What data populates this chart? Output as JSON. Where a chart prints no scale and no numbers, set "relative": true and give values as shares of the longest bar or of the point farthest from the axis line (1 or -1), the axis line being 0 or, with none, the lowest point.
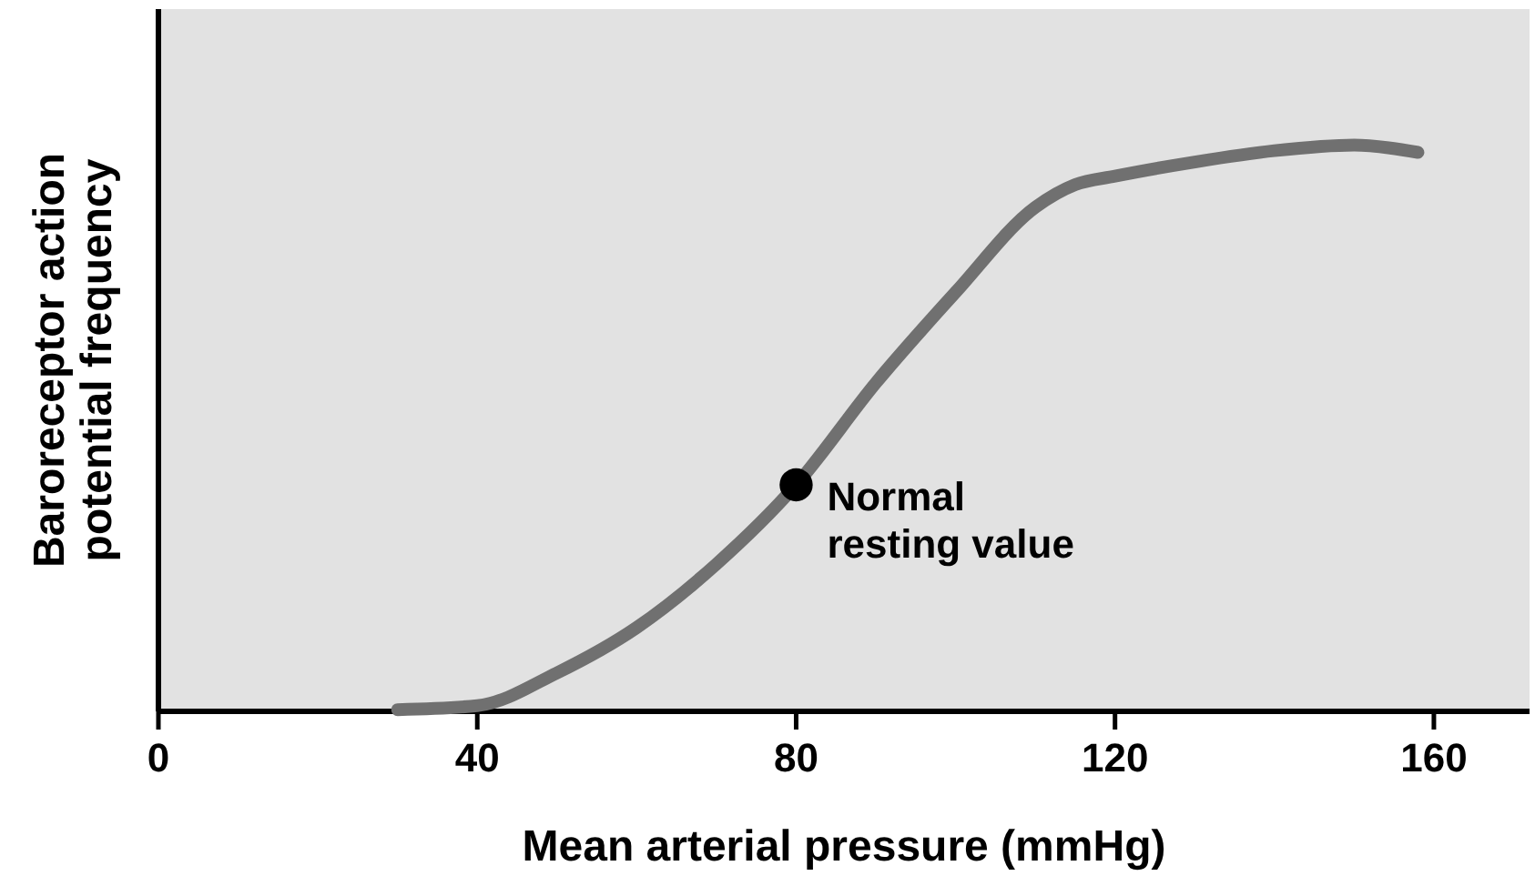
{
  "chart_data": {
    "type": "line",
    "relative": true,
    "xlabel": "Mean arterial pressure (mmHg)",
    "ylabel": "Baroreceptor action potential frequency",
    "xlim": [
      0,
      172
    ],
    "xticks": [
      0,
      40,
      80,
      120,
      160
    ],
    "grid": false,
    "tick_labels": "x",
    "series": [
      {
        "color": "#707070",
        "marker": "none",
        "x": [
          30,
          40,
          50,
          60,
          70,
          80,
          90,
          100,
          110,
          115,
          120,
          130,
          140,
          150,
          158
        ],
        "values": [
          0.003,
          0.01,
          0.068,
          0.148,
          0.26,
          0.4,
          0.58,
          0.74,
          0.89,
          0.93,
          0.945,
          0.97,
          0.99,
          1.0,
          0.987
        ]
      },
      {
        "type": "scatter",
        "color": "#000000",
        "marker": "circle",
        "x": [
          80
        ],
        "values": [
          0.4
        ]
      }
    ],
    "annotations": [
      {
        "text": "Normal resting value",
        "x": 80,
        "y": 0.4
      }
    ]
  }
}
